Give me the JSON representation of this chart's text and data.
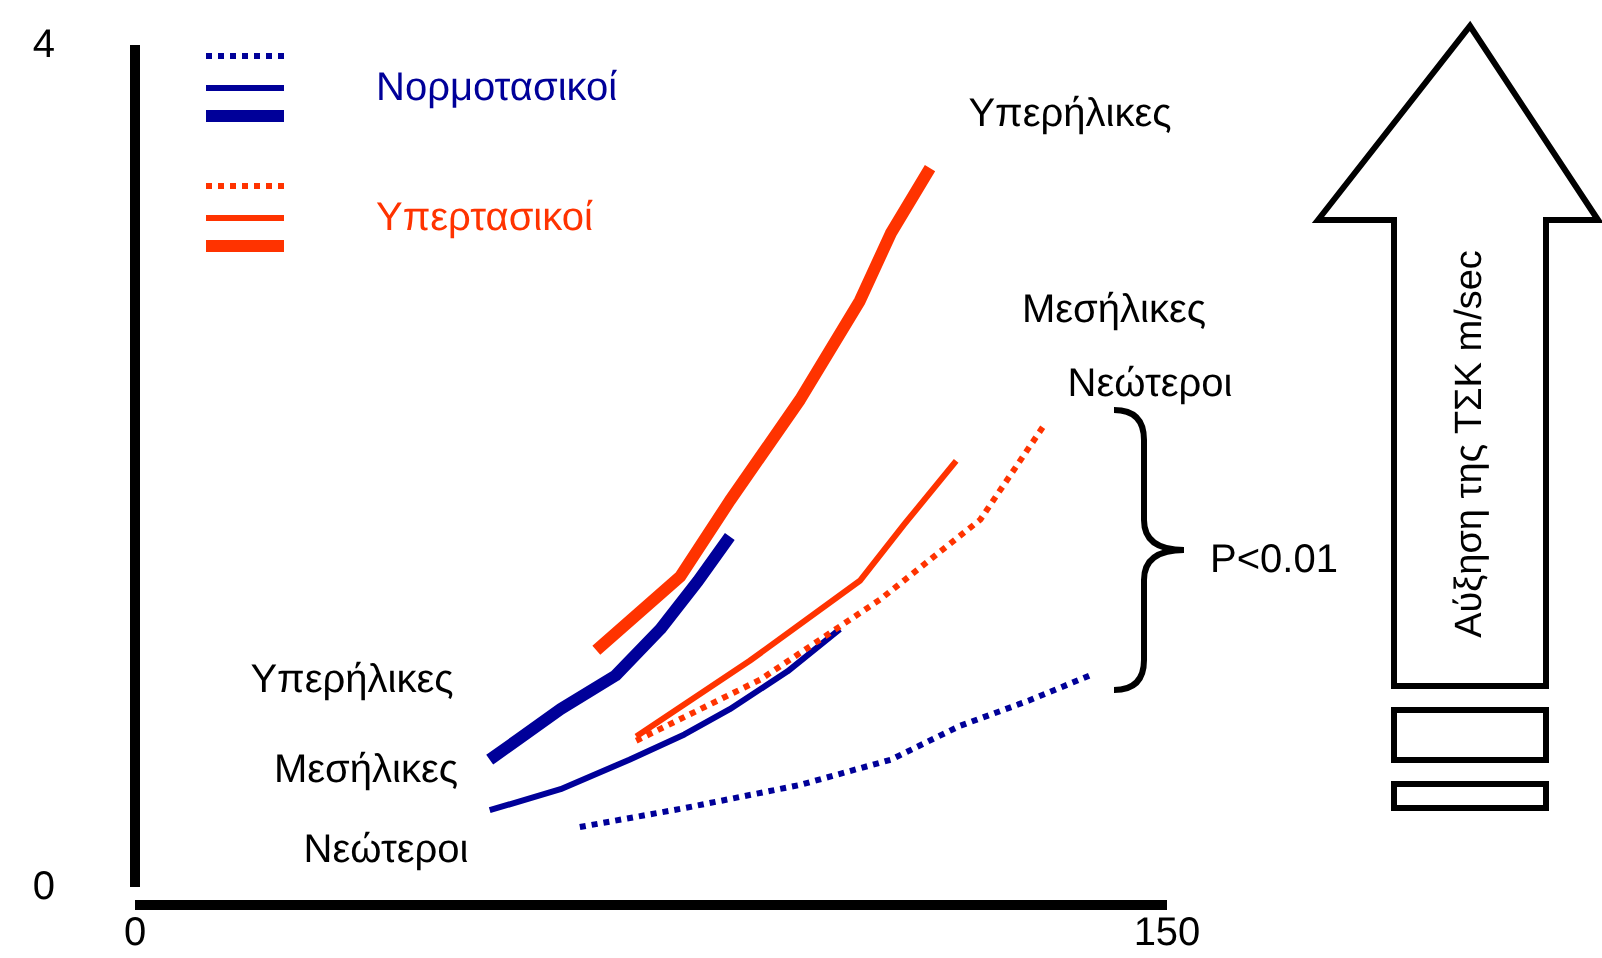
{
  "chart_data": {
    "type": "line",
    "xlim": [
      0,
      150
    ],
    "ylim": [
      0,
      4
    ],
    "xticks": [
      0,
      150
    ],
    "yticks": [
      0,
      4
    ],
    "grid": false,
    "legend": "top left",
    "marker": "none",
    "series": [
      {
        "color": "#000099",
        "line_style": "dotted",
        "x": [
          64.8,
          80,
          96.8,
          110,
          120,
          130,
          138.9
        ],
        "values": [
          0.28,
          0.37,
          0.48,
          0.6,
          0.76,
          0.88,
          1.0
        ]
      },
      {
        "name": "Νορμοτασικοί",
        "color": "#000099",
        "line_style": "solid",
        "x": [
          51.7,
          62,
          72,
          80,
          86.6,
          95,
          102.6
        ],
        "values": [
          0.36,
          0.46,
          0.6,
          0.72,
          0.84,
          1.02,
          1.22
        ]
      },
      {
        "color": "#000099",
        "line_style": "solid",
        "x": [
          51.7,
          56,
          62,
          70,
          76.5,
          82,
          86.6
        ],
        "values": [
          0.6,
          0.7,
          0.84,
          1.0,
          1.22,
          1.45,
          1.66
        ]
      },
      {
        "color": "#ff3300",
        "line_style": "dotted",
        "x": [
          73,
          91,
          108.4,
          123,
          132.3
        ],
        "values": [
          0.69,
          0.98,
          1.36,
          1.74,
          2.19
        ]
      },
      {
        "name": "Υπερτασικοί",
        "color": "#ff3300",
        "line_style": "solid",
        "x": [
          73,
          89.5,
          105.5,
          112,
          119.5
        ],
        "values": [
          0.71,
          1.07,
          1.45,
          1.72,
          2.02
        ]
      },
      {
        "color": "#ff3300",
        "line_style": "solid",
        "x": [
          67.2,
          79.4,
          86.6,
          96.8,
          105.5,
          110,
          115.7
        ],
        "values": [
          1.12,
          1.47,
          1.83,
          2.31,
          2.78,
          3.1,
          3.41
        ]
      }
    ],
    "annotations": [
      "Υπερήλικες",
      "Μεσήλικες",
      "Νεώτεροι",
      "Υπερήλικες",
      "Μεσήλικες",
      "Νεώτεροι",
      "P<0.01",
      "Αύξηση της ΤΣΚ m/sec"
    ]
  }
}
